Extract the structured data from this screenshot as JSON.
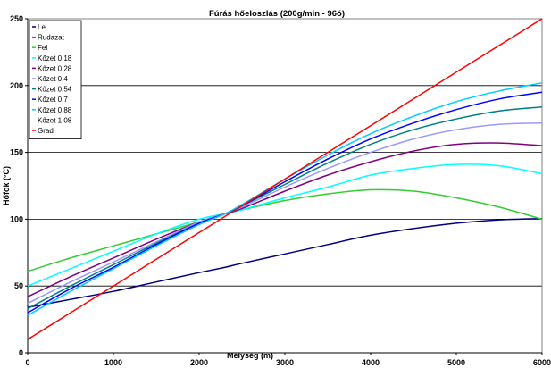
{
  "chart_data": {
    "type": "line",
    "title": "Fúrás hőeloszlás (200g/min - 96ó)",
    "xlabel": "Mélység (m)",
    "ylabel": "Hőfok (°C)",
    "xlim": [
      0,
      6000
    ],
    "ylim": [
      0,
      250
    ],
    "x_ticks": [
      "0",
      "1000",
      "2000",
      "3000",
      "4000",
      "5000",
      "6000"
    ],
    "y_ticks": [
      "0",
      "50",
      "100",
      "150",
      "200",
      "250"
    ],
    "grid": "horizontal",
    "legend_position": "top-left",
    "x": [
      0,
      500,
      1000,
      1500,
      2000,
      2300,
      2500,
      3000,
      3500,
      4000,
      4500,
      5000,
      5500,
      6000
    ],
    "series": [
      {
        "name": "Le",
        "color": "#000080",
        "values": [
          34,
          40,
          46,
          53,
          60,
          64,
          67,
          74,
          81,
          88,
          93,
          97,
          99.5,
          100.5
        ]
      },
      {
        "name": "Rudazat",
        "color": "#ff00ff",
        "values": [
          null,
          null,
          null,
          null,
          null,
          null,
          null,
          null,
          null,
          null,
          null,
          null,
          null,
          null
        ]
      },
      {
        "name": "Fel",
        "color": "#33cc33",
        "values": [
          61,
          71,
          80,
          89,
          98,
          104,
          107,
          114,
          119,
          122,
          121,
          116,
          109,
          100
        ]
      },
      {
        "name": "Kőzet 0,18",
        "color": "#00ffff",
        "values": [
          50,
          63,
          76,
          89,
          100,
          104,
          107,
          116,
          124,
          133,
          138,
          141,
          140,
          134
        ]
      },
      {
        "name": "Kőzet 0,28",
        "color": "#800080",
        "values": [
          42,
          57,
          71,
          85,
          98,
          104,
          108,
          121,
          133,
          143,
          151,
          156,
          157,
          155
        ]
      },
      {
        "name": "Kőzet 0,4",
        "color": "#9999ff",
        "values": [
          37,
          53,
          68,
          83,
          98,
          104,
          109,
          124,
          138,
          150,
          160,
          167,
          171,
          172
        ]
      },
      {
        "name": "Kőzet 0,54",
        "color": "#008080",
        "values": [
          33,
          50,
          66,
          82,
          97,
          104,
          110,
          126,
          142,
          156,
          167,
          175,
          181,
          184
        ]
      },
      {
        "name": "Kőzet 0,7",
        "color": "#0000ff",
        "values": [
          30,
          48,
          64,
          81,
          97,
          104,
          110,
          128,
          145,
          160,
          172,
          182,
          190,
          195
        ]
      },
      {
        "name": "Kőzet 0,88",
        "color": "#00ccff",
        "values": [
          28,
          46,
          63,
          80,
          96,
          104,
          111,
          130,
          148,
          164,
          177,
          188,
          196,
          202
        ]
      },
      {
        "name": "Kőzet 1,08",
        "color": "#ffffff",
        "values": [
          null,
          null,
          null,
          null,
          null,
          null,
          null,
          null,
          null,
          null,
          null,
          null,
          null,
          null
        ]
      },
      {
        "name": "Grad",
        "color": "#ff0000",
        "values": [
          10,
          30,
          50,
          70,
          90,
          102,
          110,
          130,
          150,
          170,
          190,
          210,
          230,
          250
        ]
      }
    ]
  }
}
